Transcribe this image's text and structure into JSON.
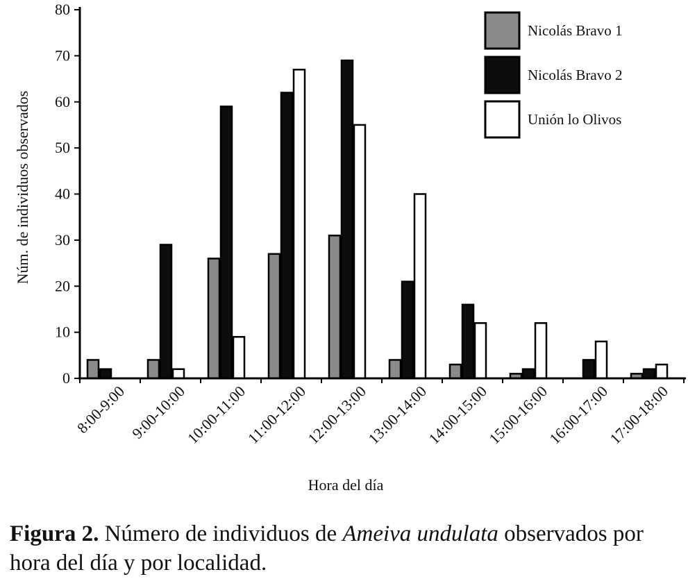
{
  "chart_data": {
    "type": "bar",
    "title": "",
    "xlabel": "Hora del día",
    "ylabel": "Núm. de individuos observados",
    "ylim": [
      0,
      80
    ],
    "yticks": [
      0,
      10,
      20,
      30,
      40,
      50,
      60,
      70,
      80
    ],
    "categories": [
      "8:00-9:00",
      "9:00-10:00",
      "10:00-11:00",
      "11:00-12:00",
      "12:00-13:00",
      "13:00-14:00",
      "14:00-15:00",
      "15:00-16:00",
      "16:00-17:00",
      "17:00-18:00"
    ],
    "series": [
      {
        "name": "Nicolás Bravo 1",
        "color": "#8a8a8a",
        "values": [
          4,
          4,
          26,
          27,
          31,
          4,
          3,
          1,
          0,
          1
        ]
      },
      {
        "name": "Nicolás Bravo 2",
        "color": "#0d0d0d",
        "values": [
          2,
          29,
          59,
          62,
          69,
          21,
          16,
          2,
          4,
          2
        ]
      },
      {
        "name": "Unión lo Olivos",
        "color": "#ffffff",
        "values": [
          0,
          2,
          9,
          67,
          55,
          40,
          12,
          12,
          8,
          3
        ]
      }
    ],
    "legend_position": "top-right",
    "grid": false
  },
  "caption": {
    "label": "Figura 2.",
    "text_before": " Número de individuos de ",
    "species": "Ameiva undulata",
    "text_after": " observados por hora del día y por localidad."
  }
}
